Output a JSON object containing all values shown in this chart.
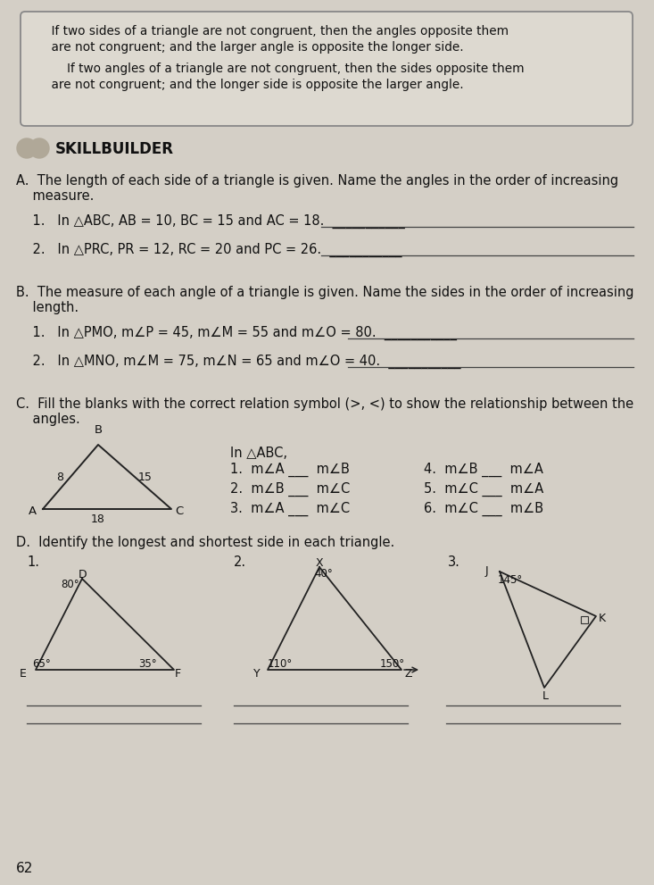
{
  "bg_color": "#d4cfc6",
  "text_color": "#1a1a1a",
  "box_bg": "#ddd9d0",
  "box_line1": "    If two sides of a triangle are not congruent, then the angles opposite them",
  "box_line2": "    are not congruent; and the larger angle is opposite the longer side.",
  "box_line3": "        If two angles of a triangle are not congruent, then the sides opposite them",
  "box_line4": "    are not congruent; and the longer side is opposite the larger angle.",
  "skillbuilder": "SKILLBUILDER",
  "sA_header1": "A.  The length of each side of a triangle is given. Name the angles in the order of increasing",
  "sA_header2": "    measure.",
  "sA1": "    1.   In △ABC, AB = 10, BC = 15 and AC = 18.  ___________",
  "sA2": "    2.   In △PRC, PR = 12, RC = 20 and PC = 26.  ___________",
  "sB_header1": "B.  The measure of each angle of a triangle is given. Name the sides in the order of increasing",
  "sB_header2": "    length.",
  "sB1": "    1.   In △PMO, m∠P = 45, m∠M = 55 and m∠O = 80.  ___________",
  "sB2": "    2.   In △MNO, m∠M = 75, m∠N = 65 and m∠O = 40.  ___________",
  "sC_header1": "C.  Fill the blanks with the correct relation symbol (>, <) to show the relationship between the",
  "sC_header2": "    angles.",
  "sC_inABC": "In △ABC,",
  "sC_L1": "1.  m∠A ___  m∠B",
  "sC_L2": "2.  m∠B ___  m∠C",
  "sC_L3": "3.  m∠A ___  m∠C",
  "sC_R1": "4.  m∠B ___  m∠A",
  "sC_R2": "5.  m∠C ___  m∠A",
  "sC_R3": "6.  m∠C ___  m∠B",
  "sD_header": "D.  Identify the longest and shortest side in each triangle.",
  "page_number": "62"
}
